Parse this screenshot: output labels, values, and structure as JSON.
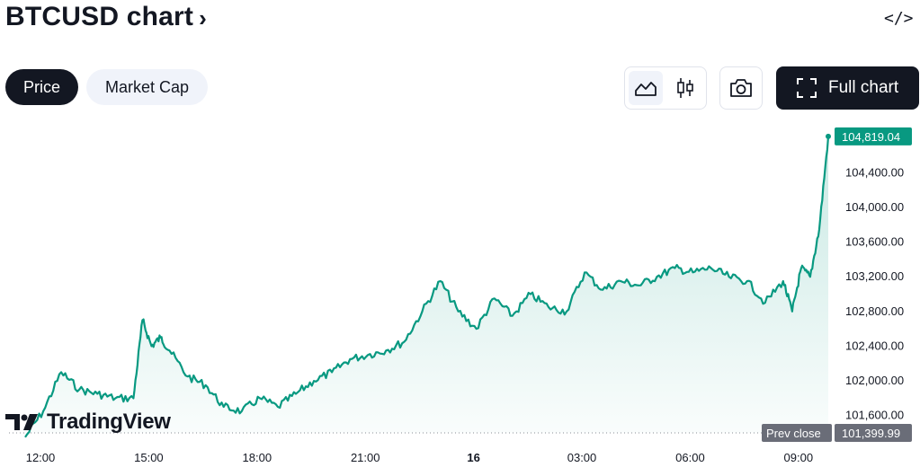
{
  "header": {
    "title": "BTCUSD chart",
    "title_chevron": "›",
    "embed_icon": "</>"
  },
  "tabs": [
    {
      "label": "Price",
      "active": true
    },
    {
      "label": "Market Cap",
      "active": false
    }
  ],
  "toolbar": {
    "full_chart_label": "Full chart"
  },
  "brand": {
    "name": "TradingView"
  },
  "colors": {
    "line": "#089981",
    "dark": "#131722",
    "prev_close": "#6a6d78"
  },
  "chart_data": {
    "type": "area",
    "x_ticks": [
      "12:00",
      "15:00",
      "18:00",
      "21:00",
      "16",
      "03:00",
      "06:00",
      "09:00"
    ],
    "y_ticks": [
      "101,600.00",
      "102,000.00",
      "102,400.00",
      "102,800.00",
      "103,200.00",
      "103,600.00",
      "104,000.00",
      "104,400.00"
    ],
    "ylim": [
      101400,
      104900
    ],
    "last_price_label": "104,819.04",
    "last_price": 104819.04,
    "prev_close_label": "Prev close",
    "prev_close_value_label": "101,399.99",
    "prev_close": 101399.99,
    "series": [
      {
        "x": [
          "12:00",
          "12:30",
          "13:00",
          "13:30",
          "14:00",
          "14:30",
          "15:00",
          "15:15",
          "15:30",
          "15:45",
          "16:00",
          "16:30",
          "17:00",
          "17:30",
          "18:00",
          "18:30",
          "19:00",
          "19:30",
          "20:00",
          "20:30",
          "21:00",
          "21:30",
          "22:00",
          "22:30",
          "23:00",
          "23:30",
          "00:00",
          "00:30",
          "01:00",
          "01:30",
          "02:00",
          "02:30",
          "03:00",
          "03:30",
          "04:00",
          "04:30",
          "05:00",
          "05:30",
          "06:00",
          "06:30",
          "07:00",
          "07:30",
          "08:00",
          "08:30",
          "09:00",
          "09:15",
          "09:30",
          "09:45",
          "10:00",
          "10:15"
        ],
        "values": [
          101350,
          101650,
          102100,
          101900,
          101850,
          101800,
          101800,
          102700,
          102400,
          102500,
          102350,
          102050,
          101950,
          101700,
          101650,
          101800,
          101700,
          101850,
          102000,
          102100,
          102250,
          102300,
          102350,
          102450,
          102800,
          103150,
          102800,
          102600,
          102950,
          102750,
          103000,
          102850,
          102800,
          103250,
          103050,
          103150,
          103100,
          103200,
          103300,
          103250,
          103300,
          103200,
          103150,
          102900,
          103150,
          102800,
          103300,
          103200,
          103750,
          104819.04
        ]
      }
    ]
  }
}
